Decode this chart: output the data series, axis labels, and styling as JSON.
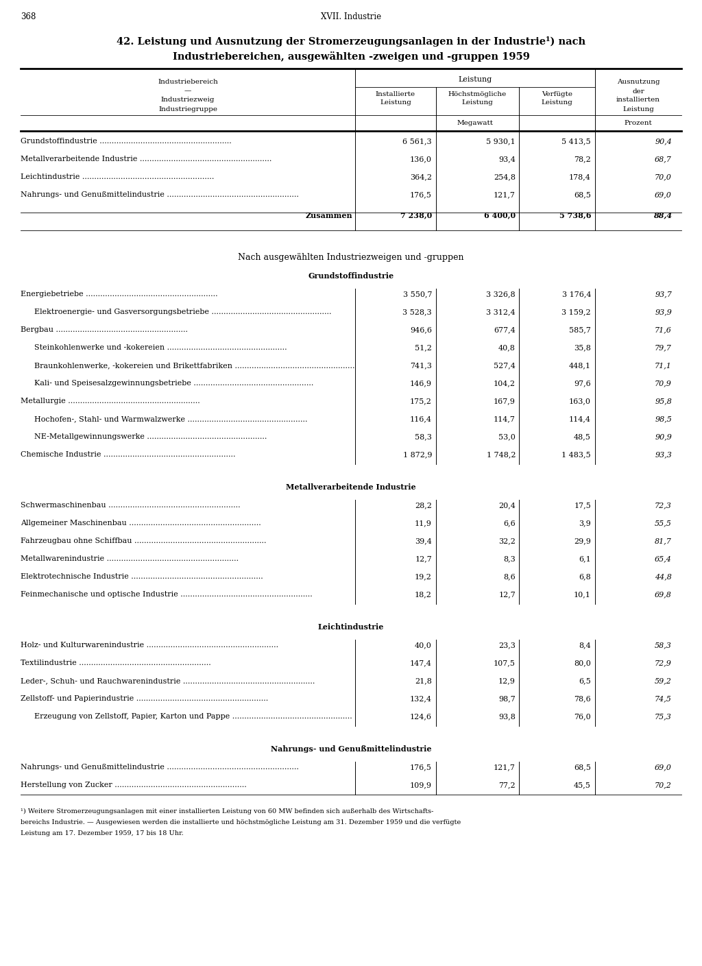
{
  "page_number": "368",
  "page_header": "XVII. Industrie",
  "title_line1": "42. Leistung und Ausnutzung der Stromerzeugungsanlagen in der Industrie¹) nach",
  "title_line2": "Industriebereichen, ausgewählten -zweigen und -gruppen 1959",
  "col_header_leistung": "Leistung",
  "col_h1a": "Installierte",
  "col_h1b": "Leistung",
  "col_h2a": "Höchstmögliche",
  "col_h2b": "Leistung",
  "col_h3a": "Verfügte",
  "col_h3b": "Leistung",
  "col_h4a": "Ausnutzung",
  "col_h4b": "der",
  "col_h4c": "installierten",
  "col_h4d": "Leistung",
  "left_h1": "Industriebereich",
  "left_h2": "—",
  "left_h3": "Industriezweig",
  "left_h4": "Industriegruppe",
  "unit_mw": "Megawatt",
  "unit_pct": "Prozent",
  "summary_rows": [
    [
      "Grundstoffindustrie",
      "6 561,3",
      "5 930,1",
      "5 413,5",
      "90,4"
    ],
    [
      "Metallverarbeitende Industrie",
      "136,0",
      "93,4",
      "78,2",
      "68,7"
    ],
    [
      "Leichtindustrie",
      "364,2",
      "254,8",
      "178,4",
      "70,0"
    ],
    [
      "Nahrungs- und Genußmittelindustrie",
      "176,5",
      "121,7",
      "68,5",
      "69,0"
    ]
  ],
  "zusammen_row": [
    "Zusammen",
    "7 238,0",
    "6 400,0",
    "5 738,6",
    "88,4"
  ],
  "section_subtitle": "Nach ausgewählten Industriezweigen und -gruppen",
  "grundstoff_title": "Grundstoffindustrie",
  "grundstoff_rows": [
    [
      false,
      "Energiebetriebe",
      "3 550,7",
      "3 326,8",
      "3 176,4",
      "93,7"
    ],
    [
      true,
      "Elektroenergie- und Gasversorgungsbetriebe",
      "3 528,3",
      "3 312,4",
      "3 159,2",
      "93,9"
    ],
    [
      false,
      "Bergbau",
      "946,6",
      "677,4",
      "585,7",
      "71,6"
    ],
    [
      true,
      "Steinkohlenwerke und -kokereien",
      "51,2",
      "40,8",
      "35,8",
      "79,7"
    ],
    [
      true,
      "Braunkohlenwerke, -kokereien und Brikettfabriken",
      "741,3",
      "527,4",
      "448,1",
      "71,1"
    ],
    [
      true,
      "Kali- und Speisesalzgewinnungsbetriebe",
      "146,9",
      "104,2",
      "97,6",
      "70,9"
    ],
    [
      false,
      "Metallurgie",
      "175,2",
      "167,9",
      "163,0",
      "95,8"
    ],
    [
      true,
      "Hochofen-, Stahl- und Warmwalzwerke",
      "116,4",
      "114,7",
      "114,4",
      "98,5"
    ],
    [
      true,
      "NE-Metallgewinnungswerke",
      "58,3",
      "53,0",
      "48,5",
      "90,9"
    ],
    [
      false,
      "Chemische Industrie",
      "1 872,9",
      "1 748,2",
      "1 483,5",
      "93,3"
    ]
  ],
  "metallverarbeitend_title": "Metallverarbeitende Industrie",
  "metallverarbeitend_rows": [
    [
      false,
      "Schwermaschinenbau",
      "28,2",
      "20,4",
      "17,5",
      "72,3"
    ],
    [
      false,
      "Allgemeiner Maschinenbau",
      "11,9",
      "6,6",
      "3,9",
      "55,5"
    ],
    [
      false,
      "Fahrzeugbau ohne Schiffbau",
      "39,4",
      "32,2",
      "29,9",
      "81,7"
    ],
    [
      false,
      "Metallwarenindustrie",
      "12,7",
      "8,3",
      "6,1",
      "65,4"
    ],
    [
      false,
      "Elektrotechnische Industrie",
      "19,2",
      "8,6",
      "6,8",
      "44,8"
    ],
    [
      false,
      "Feinmechanische und optische Industrie",
      "18,2",
      "12,7",
      "10,1",
      "69,8"
    ]
  ],
  "leicht_title": "Leichtindustrie",
  "leicht_rows": [
    [
      false,
      "Holz- und Kulturwarenindustrie",
      "40,0",
      "23,3",
      "8,4",
      "58,3"
    ],
    [
      false,
      "Textilindustrie",
      "147,4",
      "107,5",
      "80,0",
      "72,9"
    ],
    [
      false,
      "Leder-, Schuh- und Rauchwarenindustrie",
      "21,8",
      "12,9",
      "6,5",
      "59,2"
    ],
    [
      false,
      "Zellstoff- und Papierindustrie",
      "132,4",
      "98,7",
      "78,6",
      "74,5"
    ],
    [
      true,
      "Erzeugung von Zellstoff, Papier, Karton und Pappe",
      "124,6",
      "93,8",
      "76,0",
      "75,3"
    ]
  ],
  "nahrung_title": "Nahrungs- und Genußmittelindustrie",
  "nahrung_rows": [
    [
      false,
      "Nahrungs- und Genußmittelindustrie",
      "176,5",
      "121,7",
      "68,5",
      "69,0"
    ],
    [
      false,
      "Herstellung von Zucker",
      "109,9",
      "77,2",
      "45,5",
      "70,2"
    ]
  ],
  "footnote_lines": [
    "¹) Weitere Stromerzeugungsanlagen mit einer installierten Leistung von 60 MW befinden sich außerhalb des Wirtschafts-",
    "bereichs Industrie. — Ausgewiesen werden die installierte und höchstmögliche Leistung am 31. Dezember 1959 und die verfügte",
    "Leistung am 17. Dezember 1959, 17 bis 18 Uhr."
  ]
}
